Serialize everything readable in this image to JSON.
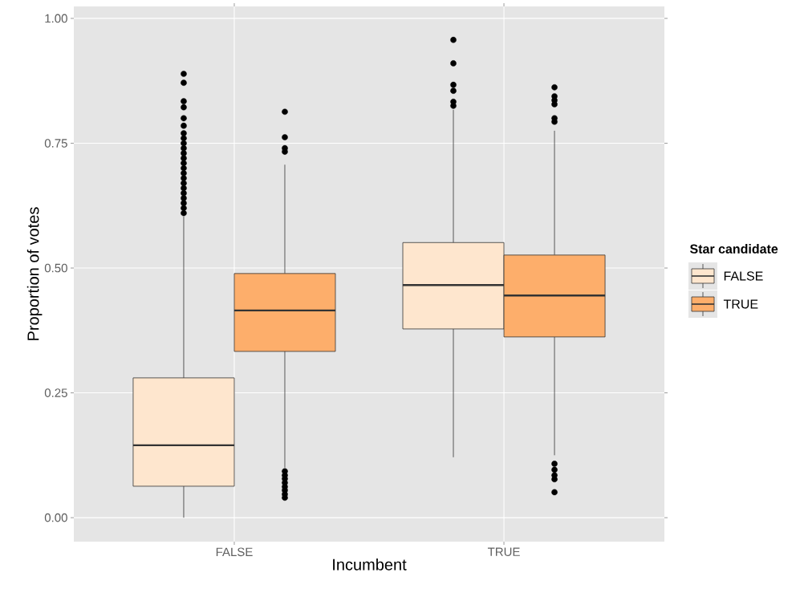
{
  "chart_data": {
    "type": "box",
    "xlabel": "Incumbent",
    "ylabel": "Proportion of votes",
    "legend_title": "Star candidate",
    "categories": [
      "FALSE",
      "TRUE"
    ],
    "series": [
      {
        "name": "FALSE",
        "color": "#fee6ce",
        "boxes": [
          {
            "low": 0.0,
            "q1": 0.063,
            "median": 0.145,
            "q3": 0.28,
            "high": 0.603,
            "outliers": [
              0.61,
              0.62,
              0.63,
              0.64,
              0.65,
              0.66,
              0.67,
              0.68,
              0.69,
              0.7,
              0.71,
              0.72,
              0.73,
              0.74,
              0.75,
              0.76,
              0.77,
              0.785,
              0.8,
              0.822,
              0.834,
              0.871,
              0.889
            ]
          },
          {
            "low": 0.121,
            "q1": 0.378,
            "median": 0.466,
            "q3": 0.551,
            "high": 0.817,
            "outliers": [
              0.825,
              0.833,
              0.855,
              0.867,
              0.91,
              0.957
            ]
          }
        ]
      },
      {
        "name": "TRUE",
        "color": "#fdae6b",
        "boxes": [
          {
            "low": 0.1,
            "q1": 0.333,
            "median": 0.415,
            "q3": 0.489,
            "high": 0.707,
            "outliers": [
              0.04,
              0.047,
              0.055,
              0.062,
              0.07,
              0.078,
              0.085,
              0.093,
              0.733,
              0.74,
              0.762,
              0.813
            ]
          },
          {
            "low": 0.125,
            "q1": 0.362,
            "median": 0.445,
            "q3": 0.526,
            "high": 0.775,
            "outliers": [
              0.051,
              0.077,
              0.085,
              0.096,
              0.108,
              0.793,
              0.8,
              0.828,
              0.836,
              0.844,
              0.862
            ]
          }
        ]
      }
    ],
    "ylim": [
      -0.048,
      1.024
    ],
    "yticks": [
      {
        "value": 0,
        "label": "0.00"
      },
      {
        "value": 0.25,
        "label": "0.25"
      },
      {
        "value": 0.5,
        "label": "0.50"
      },
      {
        "value": 0.75,
        "label": "0.75"
      },
      {
        "value": 1,
        "label": "1.00"
      }
    ],
    "grid": true,
    "legend": "right"
  }
}
